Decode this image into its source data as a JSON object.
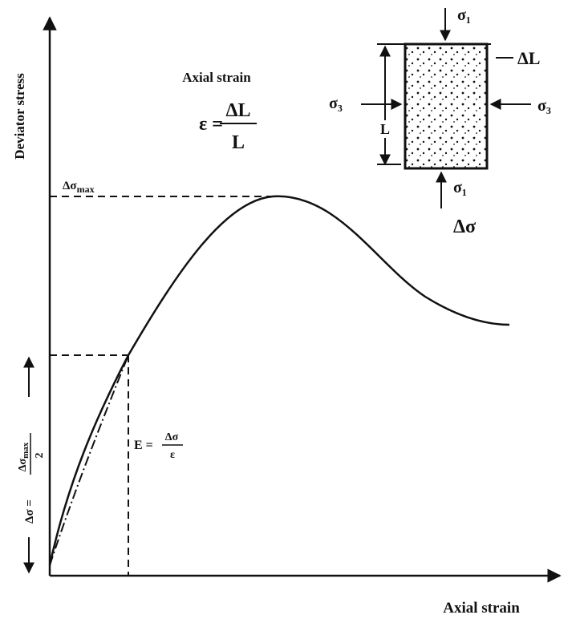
{
  "axes": {
    "y_label": "Deviator stress",
    "x_label": "Axial strain"
  },
  "peak_label": {
    "symbol": "Δσ",
    "subscript": "max"
  },
  "half_label": {
    "lhs": "Δσ =",
    "numerator": "Δσ",
    "subscript": "max",
    "denominator": "2"
  },
  "modulus_label": {
    "lhs": "E =",
    "numerator": "Δσ",
    "denominator": "ε"
  },
  "inset": {
    "title": "Axial strain",
    "strain_lhs": "ε =",
    "strain_numerator": "ΔL",
    "strain_denominator": "L",
    "sigma1_top": "σ₁",
    "sigma3_left": "σ₃",
    "sigma3_right": "σ₃",
    "delta_L": "ΔL",
    "length": "L",
    "sigma1_bottom": "σ₁",
    "delta_sigma": "Δσ"
  }
}
